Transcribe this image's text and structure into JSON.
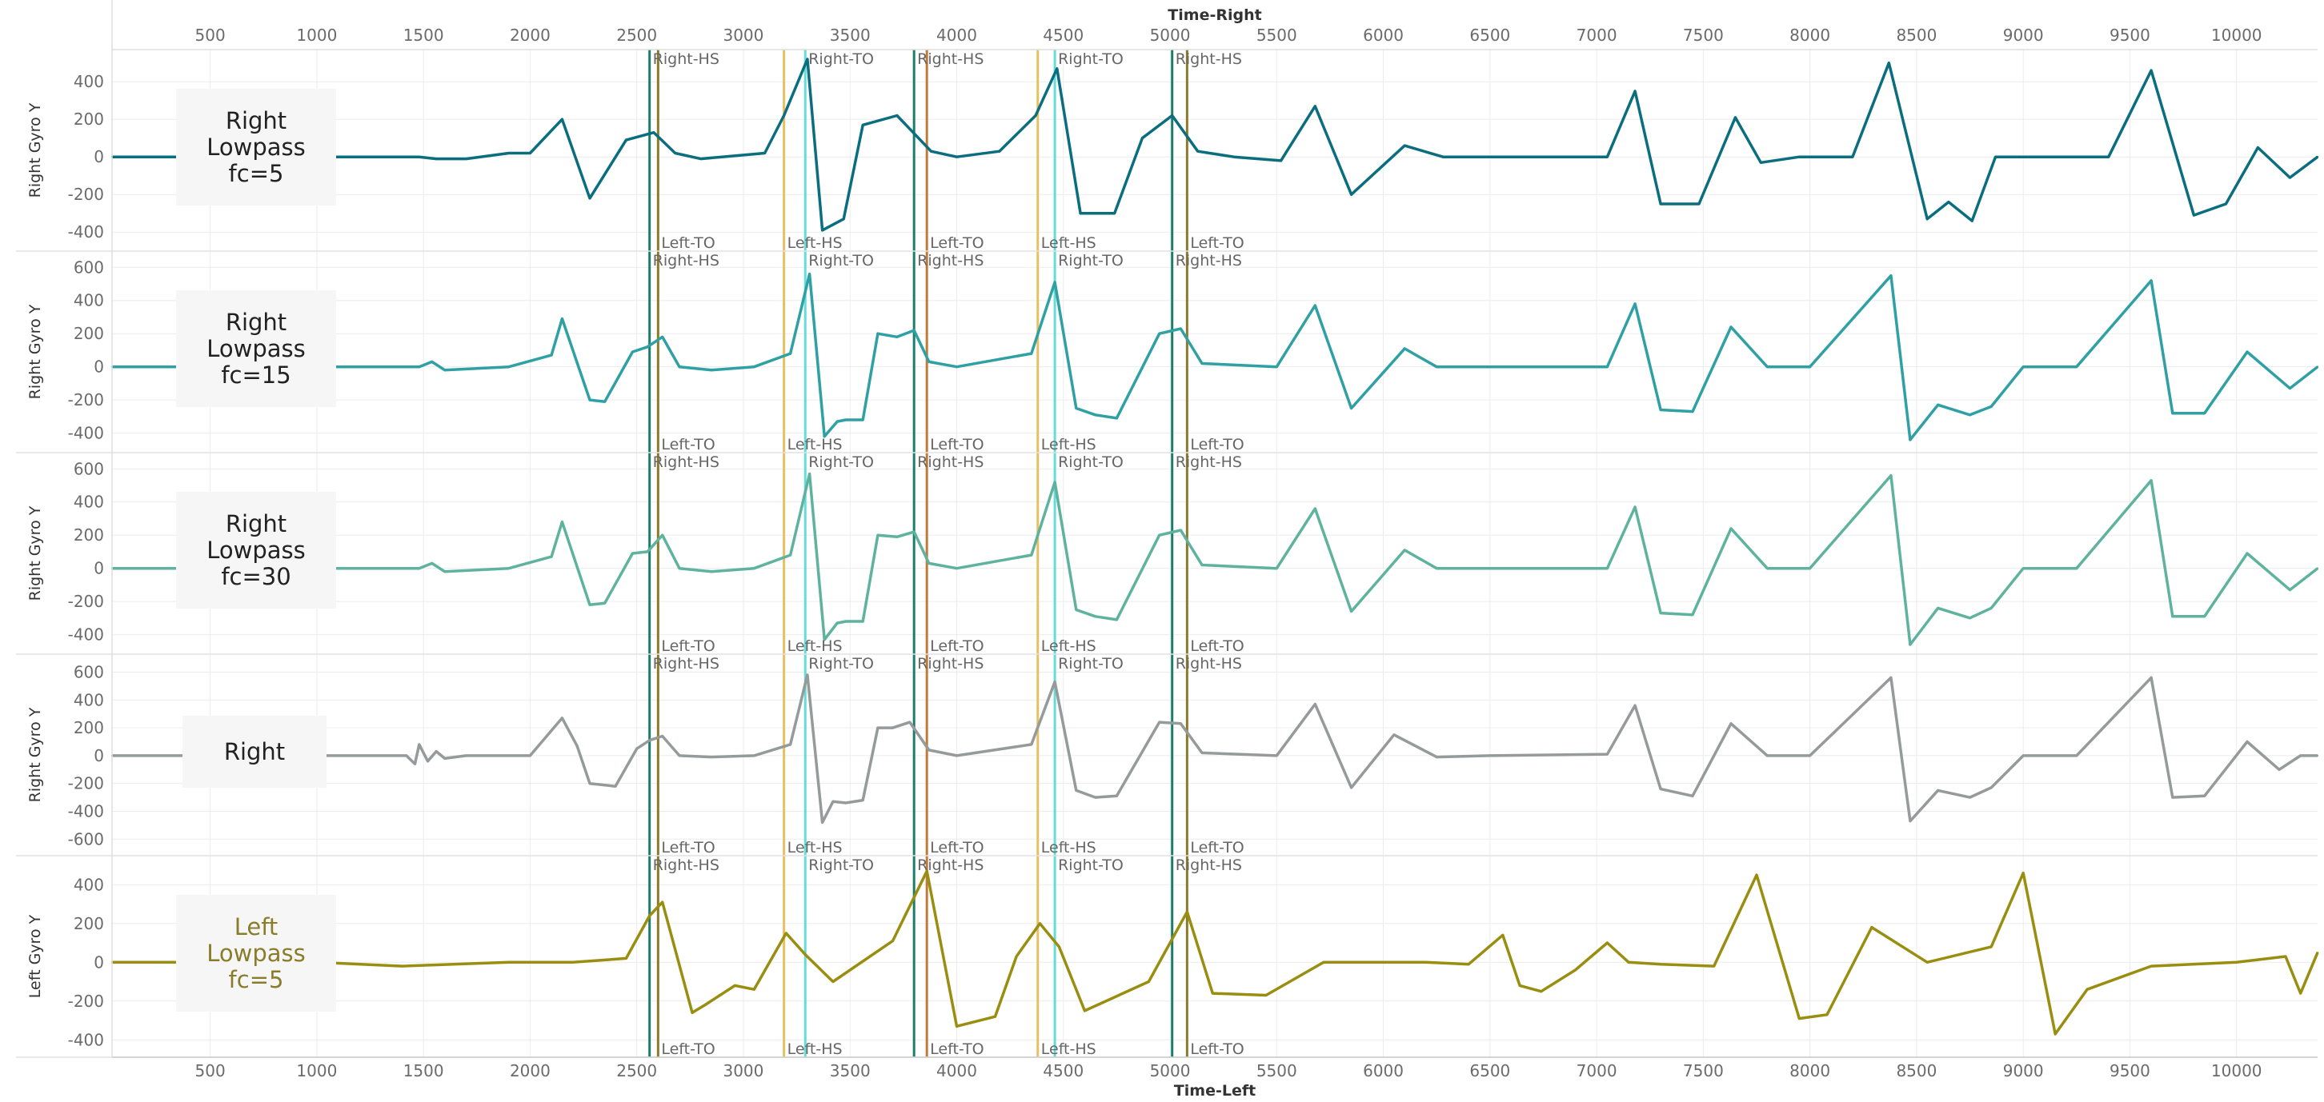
{
  "chart_data": {
    "type": "line",
    "x_axis_top": {
      "title": "Time-Right",
      "range": [
        40,
        10380
      ],
      "ticks": [
        500,
        1000,
        1500,
        2000,
        2500,
        3000,
        3500,
        4000,
        4500,
        5000,
        5500,
        6000,
        6500,
        7000,
        7500,
        8000,
        8500,
        9000,
        9500,
        10000
      ]
    },
    "x_axis_bottom": {
      "title": "Time-Left",
      "range": [
        40,
        10380
      ],
      "ticks": [
        500,
        1000,
        1500,
        2000,
        2500,
        3000,
        3500,
        4000,
        4500,
        5000,
        5500,
        6000,
        6500,
        7000,
        7500,
        8000,
        8500,
        9000,
        9500,
        10000
      ]
    },
    "grid": true,
    "event_lines": [
      {
        "x": 2560,
        "color": "#1b7d6b",
        "label": "Right-HS",
        "label_position": "top"
      },
      {
        "x": 2600,
        "color": "#8b7a2b",
        "label": "Left-TO",
        "label_position": "bottom"
      },
      {
        "x": 3190,
        "color": "#e8c060",
        "label": "Left-HS",
        "label_position": "bottom"
      },
      {
        "x": 3290,
        "color": "#66dcd8",
        "label": "Right-TO",
        "label_position": "top"
      },
      {
        "x": 3800,
        "color": "#1b7d6b",
        "label": "Right-HS",
        "label_position": "top"
      },
      {
        "x": 3860,
        "color": "#c07a3a",
        "label": "Left-TO",
        "label_position": "bottom"
      },
      {
        "x": 4380,
        "color": "#e8c060",
        "label": "Left-HS",
        "label_position": "bottom"
      },
      {
        "x": 4460,
        "color": "#66dcd8",
        "label": "Right-TO",
        "label_position": "top"
      },
      {
        "x": 5010,
        "color": "#1b7d6b",
        "label": "Right-HS",
        "label_position": "top"
      },
      {
        "x": 5080,
        "color": "#8b7a2b",
        "label": "Left-TO",
        "label_position": "bottom"
      }
    ],
    "panels": [
      {
        "label_lines": [
          "Right",
          "Lowpass",
          "fc=5"
        ],
        "ylabel": "Right Gyro Y",
        "ylim": [
          -450,
          520
        ],
        "yticks": [
          400,
          200,
          0,
          -200,
          -400
        ],
        "color": "#0b6e7e",
        "x": [
          40,
          1480,
          1560,
          1700,
          1900,
          2000,
          2150,
          2280,
          2450,
          2580,
          2680,
          2800,
          2900,
          3100,
          3190,
          3300,
          3370,
          3470,
          3560,
          3720,
          3880,
          4000,
          4200,
          4370,
          4470,
          4580,
          4740,
          4870,
          5010,
          5130,
          5300,
          5520,
          5680,
          5850,
          6100,
          6280,
          6450,
          6700,
          7050,
          7180,
          7300,
          7480,
          7650,
          7770,
          7950,
          8100,
          8200,
          8370,
          8550,
          8650,
          8760,
          8870,
          9100,
          9250,
          9400,
          9600,
          9800,
          9950,
          10100,
          10250,
          10380
        ],
        "values": [
          0,
          0,
          -10,
          -10,
          20,
          20,
          200,
          -220,
          90,
          130,
          20,
          -10,
          0,
          20,
          220,
          520,
          -390,
          -330,
          170,
          220,
          30,
          0,
          30,
          220,
          470,
          -300,
          -300,
          100,
          220,
          30,
          0,
          -20,
          270,
          -200,
          60,
          0,
          0,
          0,
          0,
          350,
          -250,
          -250,
          210,
          -30,
          0,
          0,
          0,
          500,
          -330,
          -240,
          -340,
          0,
          0,
          0,
          0,
          460,
          -310,
          -250,
          50,
          -110,
          0
        ]
      },
      {
        "label_lines": [
          "Right",
          "Lowpass",
          "fc=15"
        ],
        "ylabel": "Right Gyro Y",
        "ylim": [
          -460,
          640
        ],
        "yticks": [
          600,
          400,
          200,
          0,
          -200,
          -400
        ],
        "color": "#2fa0a3",
        "x": [
          40,
          1480,
          1540,
          1600,
          1900,
          2100,
          2150,
          2280,
          2350,
          2480,
          2550,
          2620,
          2700,
          2850,
          3050,
          3220,
          3310,
          3380,
          3440,
          3480,
          3560,
          3630,
          3720,
          3800,
          3870,
          4000,
          4350,
          4460,
          4560,
          4650,
          4750,
          4950,
          5050,
          5150,
          5500,
          5680,
          5850,
          6100,
          6250,
          6500,
          7050,
          7180,
          7300,
          7450,
          7630,
          7800,
          8000,
          8380,
          8470,
          8600,
          8750,
          8850,
          9000,
          9250,
          9600,
          9700,
          9850,
          10050,
          10250,
          10380
        ],
        "values": [
          0,
          0,
          30,
          -20,
          0,
          70,
          290,
          -200,
          -210,
          90,
          120,
          180,
          0,
          -20,
          0,
          80,
          560,
          -420,
          -330,
          -320,
          -320,
          200,
          180,
          220,
          30,
          0,
          80,
          510,
          -250,
          -290,
          -310,
          200,
          230,
          20,
          0,
          370,
          -250,
          110,
          0,
          0,
          0,
          380,
          -260,
          -270,
          240,
          0,
          0,
          550,
          -440,
          -230,
          -290,
          -240,
          0,
          0,
          520,
          -280,
          -280,
          90,
          -130,
          0
        ]
      },
      {
        "label_lines": [
          "Right",
          "Lowpass",
          "fc=30"
        ],
        "ylabel": "Right Gyro Y",
        "ylim": [
          -460,
          640
        ],
        "yticks": [
          600,
          400,
          200,
          0,
          -200,
          -400
        ],
        "color": "#5fb39e",
        "x": [
          40,
          1480,
          1540,
          1600,
          1900,
          2100,
          2150,
          2280,
          2350,
          2480,
          2550,
          2620,
          2700,
          2850,
          3050,
          3220,
          3310,
          3380,
          3440,
          3480,
          3560,
          3630,
          3720,
          3800,
          3870,
          4000,
          4350,
          4460,
          4560,
          4650,
          4750,
          4950,
          5050,
          5150,
          5500,
          5680,
          5850,
          6100,
          6250,
          6500,
          7050,
          7180,
          7300,
          7450,
          7630,
          7800,
          8000,
          8380,
          8470,
          8600,
          8750,
          8850,
          9000,
          9250,
          9600,
          9700,
          9850,
          10050,
          10250,
          10380
        ],
        "values": [
          0,
          0,
          30,
          -20,
          0,
          70,
          280,
          -220,
          -210,
          90,
          100,
          200,
          0,
          -20,
          0,
          80,
          570,
          -430,
          -330,
          -320,
          -320,
          200,
          190,
          220,
          30,
          0,
          80,
          520,
          -250,
          -290,
          -310,
          200,
          230,
          20,
          0,
          360,
          -260,
          110,
          0,
          0,
          0,
          370,
          -270,
          -280,
          240,
          0,
          0,
          560,
          -460,
          -240,
          -300,
          -240,
          0,
          0,
          530,
          -290,
          -290,
          90,
          -130,
          0
        ]
      },
      {
        "label_lines": [
          "Right"
        ],
        "ylabel": "Right Gyro Y",
        "ylim": [
          -650,
          660
        ],
        "yticks": [
          600,
          400,
          200,
          0,
          -200,
          -400,
          -600
        ],
        "color": "#959a9a",
        "x": [
          40,
          1420,
          1460,
          1480,
          1520,
          1560,
          1600,
          1700,
          2000,
          2150,
          2220,
          2280,
          2400,
          2500,
          2560,
          2620,
          2700,
          2850,
          3050,
          3220,
          3300,
          3370,
          3420,
          3480,
          3560,
          3630,
          3700,
          3780,
          3870,
          4000,
          4350,
          4460,
          4560,
          4650,
          4750,
          4950,
          5050,
          5150,
          5500,
          5680,
          5850,
          6050,
          6250,
          6500,
          7050,
          7180,
          7300,
          7450,
          7630,
          7800,
          8000,
          8380,
          8470,
          8600,
          8750,
          8850,
          9000,
          9250,
          9600,
          9700,
          9850,
          10050,
          10200,
          10300,
          10380
        ],
        "values": [
          0,
          0,
          -60,
          80,
          -40,
          30,
          -20,
          0,
          0,
          270,
          70,
          -200,
          -220,
          50,
          110,
          140,
          0,
          -10,
          0,
          80,
          580,
          -480,
          -330,
          -340,
          -320,
          200,
          200,
          240,
          40,
          0,
          80,
          530,
          -250,
          -300,
          -290,
          240,
          230,
          20,
          0,
          370,
          -230,
          150,
          -10,
          0,
          10,
          360,
          -240,
          -290,
          230,
          0,
          0,
          560,
          -470,
          -250,
          -300,
          -230,
          0,
          0,
          560,
          -300,
          -290,
          100,
          -100,
          0,
          0
        ]
      },
      {
        "label_lines": [
          "Left",
          "Lowpass",
          "fc=5"
        ],
        "ylabel": "Left Gyro Y",
        "ylim": [
          -440,
          500
        ],
        "yticks": [
          400,
          200,
          0,
          -200,
          -400
        ],
        "color": "#998e10",
        "x": [
          40,
          1000,
          1400,
          1900,
          2200,
          2450,
          2560,
          2620,
          2760,
          2820,
          2960,
          3050,
          3200,
          3290,
          3420,
          3700,
          3860,
          4000,
          4180,
          4280,
          4390,
          4480,
          4600,
          4900,
          5080,
          5200,
          5450,
          5720,
          6200,
          6400,
          6560,
          6640,
          6740,
          6900,
          7050,
          7150,
          7300,
          7550,
          7750,
          7950,
          8080,
          8290,
          8550,
          8850,
          9000,
          9150,
          9300,
          9600,
          10000,
          10230,
          10300,
          10380
        ],
        "values": [
          0,
          0,
          -20,
          0,
          0,
          20,
          240,
          310,
          -260,
          -220,
          -120,
          -140,
          150,
          40,
          -100,
          110,
          470,
          -330,
          -280,
          30,
          200,
          80,
          -250,
          -100,
          260,
          -160,
          -170,
          0,
          0,
          -10,
          140,
          -120,
          -150,
          -40,
          100,
          0,
          -10,
          -20,
          450,
          -290,
          -270,
          180,
          0,
          80,
          460,
          -370,
          -140,
          -20,
          0,
          30,
          -160,
          50
        ]
      }
    ]
  }
}
